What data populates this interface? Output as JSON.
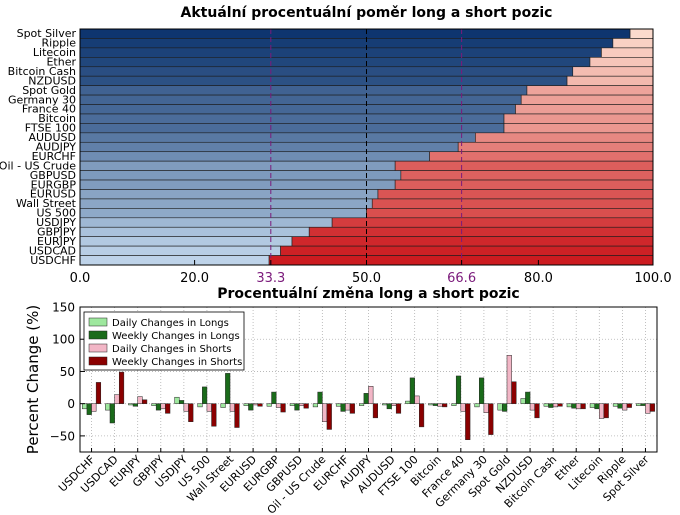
{
  "chart_data": [
    {
      "type": "bar",
      "orientation": "horizontal",
      "stacked": true,
      "title": "Aktuální procentuální poměr long a short pozic",
      "categories": [
        "Spot Silver",
        "Ripple",
        "Litecoin",
        "Ether",
        "Bitcoin Cash",
        "NZDUSD",
        "Spot Gold",
        "Germany 30",
        "France 40",
        "Bitcoin",
        "FTSE 100",
        "AUDUSD",
        "AUDJPY",
        "EURCHF",
        "Oil - US Crude",
        "GBPUSD",
        "EURGBP",
        "EURUSD",
        "Wall Street",
        "US 500",
        "USDJPY",
        "GBPJPY",
        "EURJPY",
        "USDCAD",
        "USDCHF"
      ],
      "long_values": [
        96,
        93,
        91,
        89,
        86,
        85,
        78,
        77,
        76,
        74,
        74,
        69,
        66,
        61,
        55,
        56,
        55,
        52,
        51,
        50,
        44,
        40,
        37,
        35,
        33
      ],
      "xlim": [
        0,
        100
      ],
      "xticks": [
        "0.0",
        "20.0",
        "33.3",
        "50.0",
        "66.6",
        "80.0",
        "100.0"
      ],
      "reference_lines": [
        33.3,
        50.0,
        66.6
      ],
      "colors": {
        "reference": "#7b1a7b",
        "long_dark": "#08306b",
        "long_light": "#c6dbef",
        "short_dark": "#cb181d",
        "short_light": "#fde0d2"
      }
    },
    {
      "type": "bar",
      "title": "Procentuální změna long a short pozic",
      "ylabel": "Percent Change (%)",
      "ylim": [
        -75,
        150
      ],
      "yticks": [
        "−50",
        "0",
        "50",
        "100",
        "150"
      ],
      "grid": true,
      "legend": "top-left",
      "categories": [
        "USDCHF",
        "USDCAD",
        "EURJPY",
        "GBPJPY",
        "USDJPY",
        "US 500",
        "Wall Street",
        "EURUSD",
        "EURGBP",
        "GBPUSD",
        "Oil - US Crude",
        "EURCHF",
        "AUDJPY",
        "AUDUSD",
        "FTSE 100",
        "Bitcoin",
        "France 40",
        "Germany 30",
        "Spot Gold",
        "NZDUSD",
        "Bitcoin Cash",
        "Ether",
        "Litecoin",
        "Ripple",
        "Spot Silver"
      ],
      "series": [
        {
          "name": "Daily Changes in Longs",
          "color": "#9ee89e",
          "values": [
            -8,
            -10,
            -2,
            -3,
            10,
            -5,
            -6,
            -3,
            -4,
            -3,
            -5,
            -4,
            -3,
            -2,
            4,
            -2,
            -3,
            -5,
            -10,
            8,
            -4,
            -5,
            -6,
            -4,
            -3
          ]
        },
        {
          "name": "Weekly Changes in Longs",
          "color": "#1a6b1a",
          "values": [
            -17,
            -30,
            -4,
            -10,
            5,
            26,
            47,
            -10,
            18,
            -10,
            18,
            -12,
            16,
            -8,
            40,
            -3,
            43,
            40,
            -12,
            18,
            -6,
            -7,
            -8,
            -7,
            -3
          ]
        },
        {
          "name": "Daily Changes in Shorts",
          "color": "#f2b6c6",
          "values": [
            -12,
            14,
            11,
            -8,
            -12,
            -12,
            -12,
            -2,
            -6,
            -3,
            -28,
            -10,
            27,
            -3,
            12,
            -4,
            -12,
            -14,
            75,
            -10,
            -5,
            -8,
            -23,
            -10,
            -15
          ]
        },
        {
          "name": "Weekly Changes in Shorts",
          "color": "#8b0000",
          "values": [
            33,
            49,
            6,
            -15,
            -28,
            -35,
            -37,
            -4,
            -13,
            -7,
            -40,
            -15,
            -22,
            -15,
            -36,
            -5,
            -56,
            -48,
            34,
            -22,
            -4,
            -8,
            -22,
            -6,
            -12
          ]
        }
      ]
    }
  ]
}
